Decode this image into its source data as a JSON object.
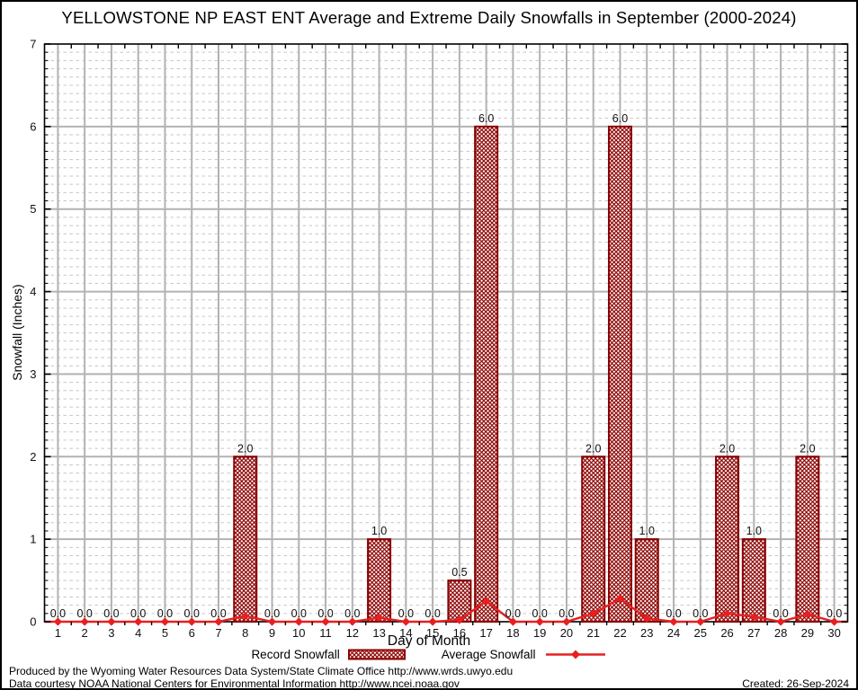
{
  "title": "YELLOWSTONE NP EAST ENT Average and Extreme Daily Snowfalls in September (2000-2024)",
  "chart_data": {
    "type": "bar",
    "x": [
      1,
      2,
      3,
      4,
      5,
      6,
      7,
      8,
      9,
      10,
      11,
      12,
      13,
      14,
      15,
      16,
      17,
      18,
      19,
      20,
      21,
      22,
      23,
      24,
      25,
      26,
      27,
      28,
      29,
      30
    ],
    "xlabel": "Day of Month",
    "ylabel": "Snowfall (Inches)",
    "ylim": [
      0,
      7
    ],
    "yticks": [
      0,
      1,
      2,
      3,
      4,
      5,
      6,
      7
    ],
    "y_minor_step": 0.1,
    "grid": {
      "major": "solid",
      "minor": "dashed"
    },
    "series": [
      {
        "name": "Record Snowfall",
        "type": "bar",
        "fill": "crosshatch",
        "values": [
          0,
          0,
          0,
          0,
          0,
          0,
          0,
          2,
          0,
          0,
          0,
          0,
          1,
          0,
          0,
          0.5,
          6,
          0,
          0,
          0,
          2,
          6,
          1,
          0,
          0,
          2,
          1,
          0,
          2,
          0
        ],
        "labels": [
          "0.0",
          "0.0",
          "0.0",
          "0.0",
          "0.0",
          "0.0",
          "0.0",
          "2.0",
          "0.0",
          "0.0",
          "0.0",
          "0.0",
          "1.0",
          "0.0",
          "0.0",
          "0.5",
          "6.0",
          "0.0",
          "0.0",
          "0.0",
          "2.0",
          "6.0",
          "1.0",
          "0.0",
          "0.0",
          "2.0",
          "1.0",
          "0.0",
          "2.0",
          "0.0"
        ]
      },
      {
        "name": "Average Snowfall",
        "type": "line",
        "marker": "diamond",
        "values": [
          0,
          0,
          0,
          0,
          0,
          0,
          0,
          0.07,
          0,
          0,
          0,
          0,
          0.05,
          0,
          0,
          0.02,
          0.25,
          0,
          0,
          0,
          0.1,
          0.28,
          0.04,
          0,
          0,
          0.1,
          0.06,
          0,
          0.09,
          0
        ]
      }
    ]
  },
  "legend": {
    "items": [
      {
        "label": "Record Snowfall",
        "swatch": "hatched-bar"
      },
      {
        "label": "Average Snowfall",
        "swatch": "line-with-marker"
      }
    ]
  },
  "footer": {
    "line1": "Produced by the Wyoming Water Resources Data System/State Climate Office http://www.wrds.uwyo.edu",
    "line2": "Data courtesy NOAA National Centers for Environmental Information http://www.ncei.noaa.gov",
    "created": "Created: 26-Sep-2024"
  },
  "colors": {
    "bar": "#8b0000",
    "line": "#e62020",
    "grid_major": "#b2b2b2",
    "grid_minor": "#c6c6c6",
    "axis": "#000000",
    "label_text": "#111111"
  }
}
